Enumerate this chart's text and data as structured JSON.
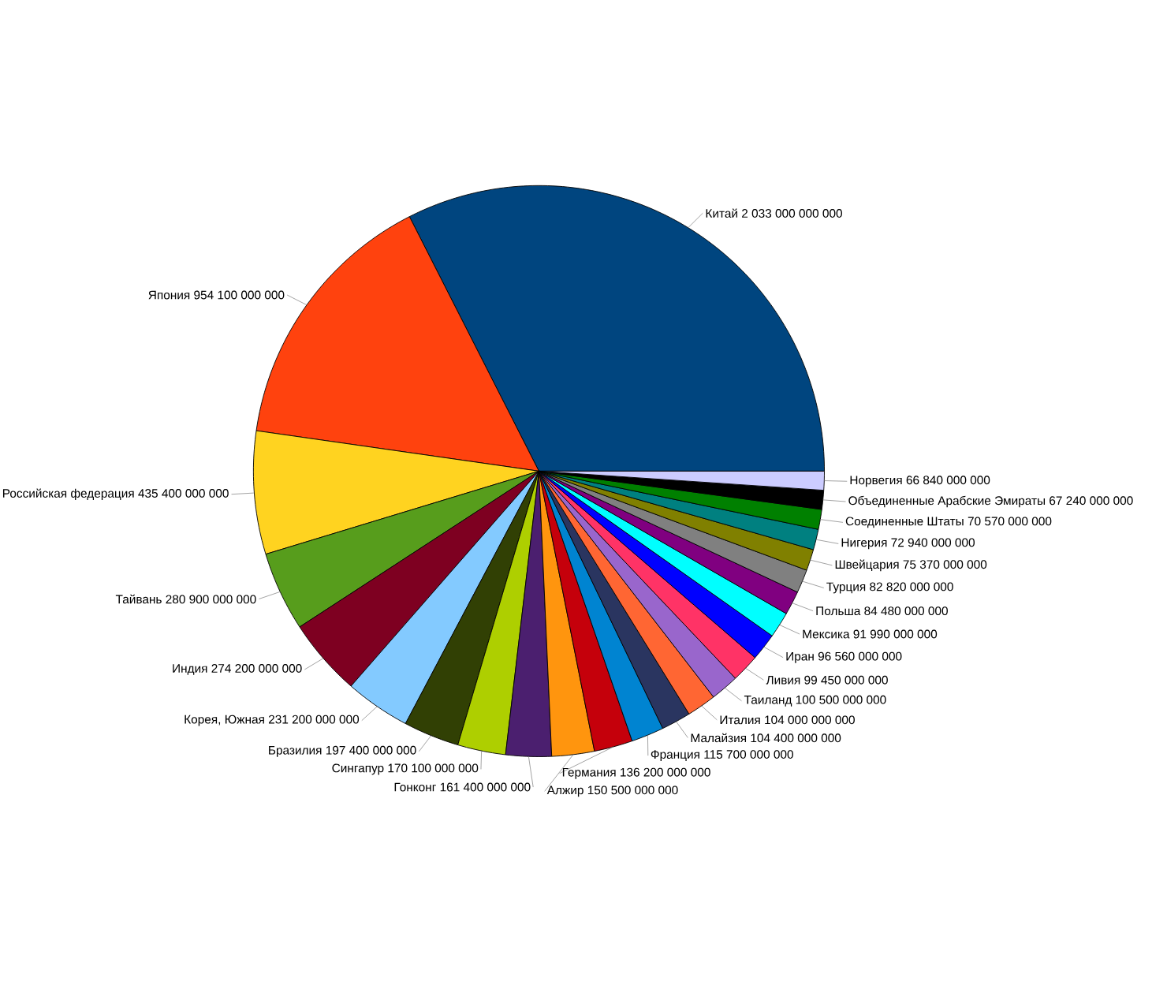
{
  "chart_data": {
    "type": "pie",
    "categories": [
      "Китай",
      "Япония",
      "Российская федерация",
      "Тайвань",
      "Индия",
      "Корея, Южная",
      "Бразилия",
      "Сингапур",
      "Гонконг",
      "Алжир",
      "Германия",
      "Франция",
      "Малайзия",
      "Италия",
      "Таиланд",
      "Ливия",
      "Иран",
      "Мексика",
      "Польша",
      "Турция",
      "Швейцария",
      "Нигерия",
      "Соединенные Штаты",
      "Объединенные Арабские Эмираты",
      "Норвегия"
    ],
    "values": [
      2033000000000,
      954100000000,
      435400000000,
      280900000000,
      274200000000,
      231200000000,
      197400000000,
      170100000000,
      161400000000,
      150500000000,
      136200000000,
      115700000000,
      104400000000,
      104000000000,
      100500000000,
      99450000000,
      96560000000,
      91990000000,
      84480000000,
      82820000000,
      75370000000,
      72940000000,
      70570000000,
      67240000000,
      66840000000
    ],
    "value_labels": [
      "2 033 000 000 000",
      "954 100 000 000",
      "435 400 000 000",
      "280 900 000 000",
      "274 200 000 000",
      "231 200 000 000",
      "197 400 000 000",
      "170 100 000 000",
      "161 400 000 000",
      "150 500 000 000",
      "136 200 000 000",
      "115 700 000 000",
      "104 400 000 000",
      "104 000 000 000",
      "100 500 000 000",
      "99 450 000 000",
      "96 560 000 000",
      "91 990 000 000",
      "84 480 000 000",
      "82 820 000 000",
      "75 370 000 000",
      "72 940 000 000",
      "70 570 000 000",
      "67 240 000 000",
      "66 840 000 000"
    ],
    "colors": [
      "#00457f",
      "#ff420e",
      "#ffd320",
      "#579d1c",
      "#7e0021",
      "#83caff",
      "#314004",
      "#aecf00",
      "#4b1f6f",
      "#ff950e",
      "#c5000b",
      "#0084d1",
      "#2a3560",
      "#ff6633",
      "#9966cc",
      "#ff3366",
      "#0000ff",
      "#00ffff",
      "#800080",
      "#808080",
      "#808000",
      "#008080",
      "#008000",
      "#000000",
      "#ccccff"
    ]
  }
}
